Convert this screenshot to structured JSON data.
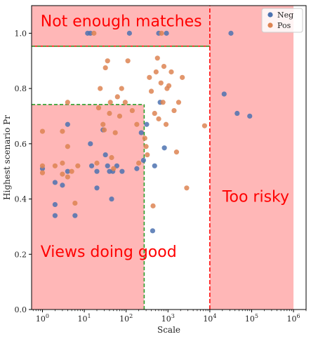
{
  "chart_data": {
    "type": "scatter",
    "xlabel": "Scale",
    "ylabel": "Highest scenario Pr",
    "xscale": "log",
    "xlim": [
      0.55,
      2000000
    ],
    "ylim": [
      0,
      1.1
    ],
    "x_ticks": [
      {
        "value": 1,
        "base": "10",
        "exp": "0"
      },
      {
        "value": 10,
        "base": "10",
        "exp": "1"
      },
      {
        "value": 100,
        "base": "10",
        "exp": "2"
      },
      {
        "value": 1000,
        "base": "10",
        "exp": "3"
      },
      {
        "value": 10000,
        "base": "10",
        "exp": "4"
      },
      {
        "value": 100000,
        "base": "10",
        "exp": "5"
      },
      {
        "value": 1000000,
        "base": "10",
        "exp": "6"
      }
    ],
    "y_ticks": [
      {
        "value": 0.0,
        "label": "0.0"
      },
      {
        "value": 0.2,
        "label": "0.2"
      },
      {
        "value": 0.4,
        "label": "0.4"
      },
      {
        "value": 0.6,
        "label": "0.6"
      },
      {
        "value": 0.8,
        "label": "0.8"
      },
      {
        "value": 1.0,
        "label": "1.0"
      }
    ],
    "grid": false,
    "legend": {
      "position": "top-right",
      "entries": [
        "Neg",
        "Pos"
      ]
    },
    "colors": {
      "Neg": "#4c72b0",
      "Pos": "#dd8452",
      "region_fill": "#ffb3b3",
      "red_line": "#ff0000",
      "green_dashed": "#2ca02c",
      "annotation": "#ff0000"
    },
    "regions": [
      {
        "label": "Not enough matches",
        "x": [
          0.55,
          10000
        ],
        "y": [
          0.953,
          1.1
        ]
      },
      {
        "label": "Too risky",
        "x": [
          10000,
          1000000
        ],
        "y": [
          0,
          1.1
        ]
      },
      {
        "label": "Views doing good",
        "x": [
          0.55,
          270
        ],
        "y": [
          0,
          0.742
        ]
      }
    ],
    "green_dashed": [
      {
        "from": [
          0.55,
          0.953
        ],
        "to": [
          10000,
          0.953
        ]
      },
      {
        "from": [
          0.55,
          0.742
        ],
        "to": [
          270,
          0.742
        ]
      },
      {
        "from": [
          270,
          0
        ],
        "to": [
          270,
          0.742
        ]
      }
    ],
    "red_lines": [
      {
        "from": [
          10000,
          0
        ],
        "to": [
          10000,
          1.1
        ]
      },
      {
        "from": [
          0.55,
          0.953
        ],
        "to": [
          10000,
          0.953
        ]
      }
    ],
    "series": [
      {
        "name": "Neg",
        "points": [
          [
            1,
            0.51
          ],
          [
            2,
            0.46
          ],
          [
            2,
            0.38
          ],
          [
            2,
            0.34
          ],
          [
            3,
            0.45
          ],
          [
            4,
            0.5
          ],
          [
            4,
            0.67
          ],
          [
            6,
            0.34
          ],
          [
            12,
            1.0
          ],
          [
            14,
            1.0
          ],
          [
            14,
            0.6
          ],
          [
            15,
            0.52
          ],
          [
            20,
            0.5
          ],
          [
            20,
            0.44
          ],
          [
            28,
            0.65
          ],
          [
            32,
            0.56
          ],
          [
            36,
            0.52
          ],
          [
            40,
            0.5
          ],
          [
            45,
            0.4
          ],
          [
            48,
            0.5
          ],
          [
            60,
            0.52
          ],
          [
            80,
            0.5
          ],
          [
            120,
            1.0
          ],
          [
            180,
            0.51
          ],
          [
            230,
            0.64
          ],
          [
            260,
            0.54
          ],
          [
            310,
            0.67
          ],
          [
            430,
            0.285
          ],
          [
            480,
            0.52
          ],
          [
            600,
            1.0
          ],
          [
            650,
            0.75
          ],
          [
            820,
            0.585
          ],
          [
            920,
            1.0
          ],
          [
            22000,
            0.78
          ],
          [
            32000,
            1.0
          ],
          [
            45000,
            0.71
          ],
          [
            90000,
            0.7
          ]
        ]
      },
      {
        "name": "Pos",
        "points": [
          [
            1,
            0.645
          ],
          [
            1,
            0.52
          ],
          [
            1,
            0.495
          ],
          [
            2,
            0.52
          ],
          [
            3,
            0.53
          ],
          [
            3,
            0.49
          ],
          [
            3,
            0.645
          ],
          [
            4,
            0.75
          ],
          [
            4,
            0.59
          ],
          [
            4,
            0.48
          ],
          [
            5,
            0.5
          ],
          [
            6,
            0.385
          ],
          [
            7,
            0.52
          ],
          [
            17,
            1.0
          ],
          [
            20,
            0.53
          ],
          [
            22,
            0.73
          ],
          [
            24,
            0.8
          ],
          [
            28,
            0.67
          ],
          [
            30,
            0.65
          ],
          [
            32,
            0.875
          ],
          [
            36,
            0.9
          ],
          [
            40,
            0.71
          ],
          [
            42,
            0.75
          ],
          [
            45,
            0.55
          ],
          [
            50,
            0.51
          ],
          [
            55,
            0.64
          ],
          [
            62,
            0.77
          ],
          [
            70,
            0.7
          ],
          [
            78,
            0.8
          ],
          [
            95,
            0.75
          ],
          [
            110,
            0.9
          ],
          [
            140,
            0.72
          ],
          [
            180,
            0.67
          ],
          [
            200,
            0.53
          ],
          [
            280,
            0.62
          ],
          [
            300,
            0.59
          ],
          [
            320,
            0.56
          ],
          [
            360,
            0.84
          ],
          [
            400,
            0.79
          ],
          [
            440,
            0.375
          ],
          [
            480,
            0.71
          ],
          [
            520,
            0.86
          ],
          [
            560,
            0.91
          ],
          [
            600,
            0.69
          ],
          [
            680,
            0.82
          ],
          [
            700,
            1.0
          ],
          [
            760,
            0.75
          ],
          [
            800,
            0.88
          ],
          [
            900,
            0.67
          ],
          [
            950,
            0.8
          ],
          [
            1050,
            0.81
          ],
          [
            1200,
            0.86
          ],
          [
            1400,
            0.72
          ],
          [
            1600,
            0.57
          ],
          [
            1800,
            0.75
          ],
          [
            2200,
            0.84
          ],
          [
            2800,
            0.44
          ],
          [
            7500,
            0.665
          ]
        ]
      }
    ]
  }
}
